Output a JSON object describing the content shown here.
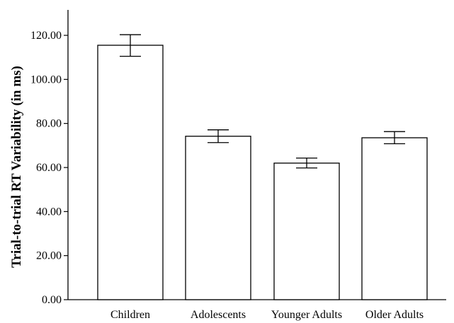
{
  "chart_data": {
    "type": "bar",
    "title": "",
    "xlabel": "",
    "ylabel": "Trial-to-trial RT Variability (in ms)",
    "categories": [
      "Children",
      "Adolescents",
      "Younger Adults",
      "Older Adults"
    ],
    "values": [
      115.5,
      74.2,
      62.0,
      73.5
    ],
    "error_low": [
      110.5,
      71.3,
      59.8,
      70.8
    ],
    "error_high": [
      120.3,
      77.1,
      64.3,
      76.3
    ],
    "ylim": [
      0,
      130
    ],
    "yticks": [
      "0.00",
      "20.00",
      "40.00",
      "60.00",
      "80.00",
      "100.00",
      "120.00"
    ],
    "ytick_values": [
      0,
      20,
      40,
      60,
      80,
      100,
      120
    ],
    "grid": false,
    "legend": "none",
    "colors": {
      "bar_fill": "#ffffff",
      "bar_stroke": "#000000",
      "axis": "#000000"
    }
  }
}
